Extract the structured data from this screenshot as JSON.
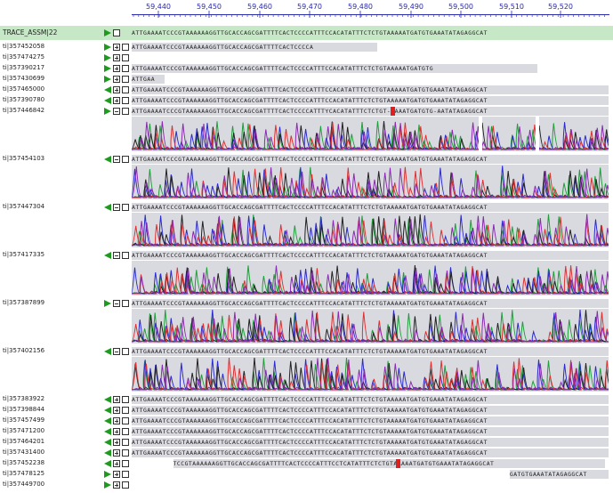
{
  "ruler": {
    "ticks": [
      "59,440",
      "59,450",
      "59,460",
      "59,470",
      "59,480",
      "59,490",
      "59,500",
      "59,510",
      "59,520"
    ]
  },
  "reference": {
    "name": "TRACE_ASSM|22",
    "sequence": "ATTGAAAATCCCGTAAAAAAGGTTGCACCAGCGATTTTCACTCCCCATTTCCACATATTTCTCTGTAAAAATGATGTGAAATATAGAGGCAT"
  },
  "colors": {
    "ref_band": "#c7e8c7",
    "arrow": "#1e9a1e",
    "mismatch": "#e02020",
    "trace_a": "#1f9e3a",
    "trace_c": "#2a2ad0",
    "trace_g": "#222222",
    "trace_t": "#e03030",
    "trace_x": "#8a2ab0"
  },
  "reads": [
    {
      "name": "ti|357452058",
      "dir": "fwd",
      "toggle": "plus",
      "seq": "ATTGAAAATCCCGTAAAAAAGGTTGCACCAGCGATTTTCACTCCCCA"
    },
    {
      "name": "ti|357474275",
      "dir": "fwd",
      "toggle": "plus",
      "seq": ""
    },
    {
      "name": "ti|357390217",
      "dir": "fwd",
      "toggle": "plus",
      "seq": "ATTGAAAATCCCGTAAAAAAGGTTGCACCAGCGATTTTCACTCCCCATTTCCACATATTTCTCTGTAAAAATGATGTG"
    },
    {
      "name": "ti|357430699",
      "dir": "fwd",
      "toggle": "plus",
      "seq": "ATTGAA"
    },
    {
      "name": "ti|357465000",
      "dir": "rev",
      "toggle": "plus",
      "seq": "ATTGAAAATCCCGTAAAAAAGGTTGCACCAGCGATTTTCACTCCCCATTTCCACATATTTCTCTGTAAAAATGATGTGAAATATAGAGGCAT"
    },
    {
      "name": "ti|357390780",
      "dir": "rev",
      "toggle": "plus",
      "seq": "ATTGAAAATCCCGTAAAAAAGGTTGCACCAGCGATTTTCACTCCCCATTTCCACATATTTCTCTGTAAAAATGATGTGAAATATAGAGGCAT"
    },
    {
      "name": "ti|357446842",
      "dir": "fwd",
      "toggle": "minus",
      "seq": "ATTGAAAATCCCGTAAAAAAGGTTGCACCAGCGATTTTCACTCCCCATTTYCACATATTTCTCTGT-AAAATGATGTG-AATATAGAGGCAT",
      "mismatch_char": "Y"
    },
    {
      "name": "ti|357454103",
      "dir": "rev",
      "toggle": "minus",
      "seq": "ATTGAAAATCCCGTAAAAAAGGTTGCACCAGCGATTTTCACTCCCCATTTCCACATATTTCTCTGTAAAAATGATGTGAAATATAGAGGCAT"
    },
    {
      "name": "ti|357447304",
      "dir": "rev",
      "toggle": "minus",
      "seq": "ATTGAAAATCCCGTAAAAAAGGTTGCACCAGCGATTTTCACTCCCCATTTCCACATATTTCTCTGTAAAAATGATGTGAAATATAGAGGCAT"
    },
    {
      "name": "ti|357417335",
      "dir": "rev",
      "toggle": "minus",
      "seq": "ATTGAAAATCCCGTAAAAAAGGTTGCACCAGCGATTTTCACTCCCCATTTCCACATATTTCTCTGTAAAAATGATGTGAAATATAGAGGCAT"
    },
    {
      "name": "ti|357387899",
      "dir": "fwd",
      "toggle": "minus",
      "seq": "ATTGAAAATCCCGTAAAAAAGGTTGCACCAGCGATTTTCACTCCCCATTTCCACATATTTCTCTGTAAAAATGATGTGAAATATAGAGGCAT"
    },
    {
      "name": "ti|357402156",
      "dir": "rev",
      "toggle": "minus",
      "seq": "ATTGAAAATCCCGTAAAAAAGGTTGCACCAGCGATTTTCACTCCCCATTTCCACATATTTCTCTGTAAAAATGATGTGAAATATAGAGGCAT"
    },
    {
      "name": "ti|357383922",
      "dir": "rev",
      "toggle": "plus",
      "seq": "ATTGAAAATCCCGTAAAAAAGGTTGCACCAGCGATTTTCACTCCCCATTTCCACATATTTCTCTGTAAAAATGATGTGAAATATAGAGGCAT"
    },
    {
      "name": "ti|357398844",
      "dir": "rev",
      "toggle": "plus",
      "seq": "ATTGAAAATCCCGTAAAAAAGGTTGCACCAGCGATTTTCACTCCCCATTTCCACATATTTCTCTGTAAAAATGATGTGAAATATAGAGGCAT"
    },
    {
      "name": "ti|357457499",
      "dir": "rev",
      "toggle": "plus",
      "seq": "ATTGAAAATCCCGTAAAAAAGGTTGCACCAGCGATTTTCACTCCCCATTTCCACATATTTCTCTGTAAAAATGATGTGAAATATAGAGGCAT"
    },
    {
      "name": "ti|357471200",
      "dir": "rev",
      "toggle": "plus",
      "seq": "ATTGAAAATCCCGTAAAAAAGGTTGCACCAGCGATTTTCACTCCCCATTTCCACATATTTCTCTGTAAAAATGATGTGAAATATAGAGGCAT"
    },
    {
      "name": "ti|357464201",
      "dir": "rev",
      "toggle": "plus",
      "seq": "ATTGAAAATCCCGTAAAAAAGGTTGCACCAGCGATTTTCACTCCCCATTTCCACATATTTCTCTGTAAAAATGATGTGAAATATAGAGGCAT"
    },
    {
      "name": "ti|357431400",
      "dir": "rev",
      "toggle": "plus",
      "seq": "ATTGAAAATCCCGTAAAAAAGGTTGCACCAGCGATTTTCACTCCCCATTTCCACATATTTCTCTGTAAAAATGATGTGAAATATAGAGGCAT"
    },
    {
      "name": "ti|357452238",
      "dir": "rev",
      "toggle": "plus",
      "seq": "TCCGTAAAAAAGGTTGCACCAGCGATTTTCACTCCCCATTTCCTCATATTTCTCTGTAAAAATGATGTGAAATATAGAGGCAT",
      "start_col": 8,
      "mismatch_char": "T"
    },
    {
      "name": "ti|357478125",
      "dir": "fwd",
      "toggle": "plus",
      "seq": "GATGTGAAATATAGAGGCAT",
      "start_col": 73
    },
    {
      "name": "ti|357449700",
      "dir": "fwd",
      "toggle": "plus",
      "seq": ""
    }
  ]
}
